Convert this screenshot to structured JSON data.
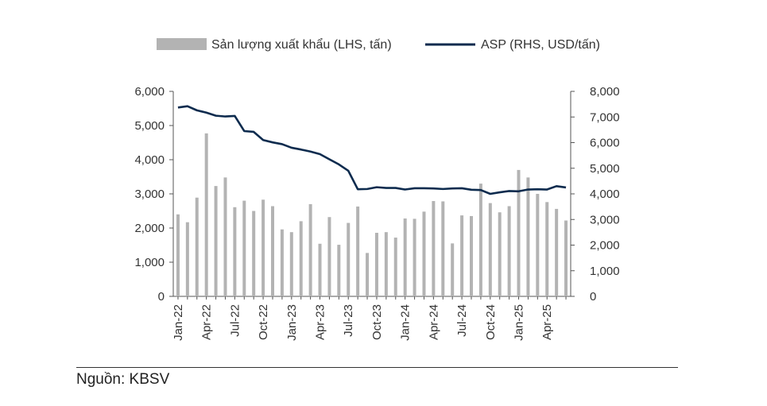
{
  "chart_data": {
    "type": "bar+line",
    "x": [
      "Jan-22",
      "Feb-22",
      "Mar-22",
      "Apr-22",
      "May-22",
      "Jun-22",
      "Jul-22",
      "Aug-22",
      "Sep-22",
      "Oct-22",
      "Nov-22",
      "Dec-22",
      "Jan-23",
      "Feb-23",
      "Mar-23",
      "Apr-23",
      "May-23",
      "Jun-23",
      "Jul-23",
      "Aug-23",
      "Sep-23",
      "Oct-23",
      "Nov-23",
      "Dec-23",
      "Jan-24",
      "Feb-24",
      "Mar-24",
      "Apr-24",
      "May-24",
      "Jun-24",
      "Jul-24",
      "Aug-24",
      "Sep-24",
      "Oct-24",
      "Nov-24",
      "Dec-24",
      "Jan-25",
      "Feb-25",
      "Mar-25",
      "Apr-25",
      "May-25",
      "Jun-25"
    ],
    "x_tick_labels": [
      "Jan-22",
      "Apr-22",
      "Jul-22",
      "Oct-22",
      "Jan-23",
      "Apr-23",
      "Jul-23",
      "Oct-23",
      "Jan-24",
      "Apr-24",
      "Jul-24",
      "Oct-24",
      "Jan-25",
      "Apr-25"
    ],
    "series": [
      {
        "name": "Sản lượng xuất khẩu (LHS, tấn)",
        "type": "bar",
        "axis": "left",
        "color": "#b3b3b3",
        "values": [
          2400,
          2170,
          2890,
          4770,
          3230,
          3480,
          2610,
          2800,
          2500,
          2830,
          2640,
          1960,
          1880,
          2200,
          2700,
          1540,
          2320,
          1510,
          2150,
          2630,
          1270,
          1860,
          1880,
          1720,
          2280,
          2270,
          2480,
          2790,
          2780,
          1550,
          2370,
          2350,
          3300,
          2730,
          2460,
          2640,
          3700,
          3480,
          3000,
          2760,
          2560,
          2220
        ]
      },
      {
        "name": "ASP (RHS, USD/tấn)",
        "type": "line",
        "axis": "right",
        "color": "#0d2b4e",
        "values": [
          7370,
          7420,
          7260,
          7170,
          7050,
          7020,
          7040,
          6450,
          6420,
          6100,
          6010,
          5940,
          5800,
          5730,
          5650,
          5550,
          5350,
          5150,
          4900,
          4180,
          4190,
          4260,
          4230,
          4230,
          4170,
          4220,
          4220,
          4210,
          4190,
          4210,
          4220,
          4160,
          4150,
          4000,
          4060,
          4110,
          4100,
          4170,
          4180,
          4170,
          4300,
          4250
        ]
      }
    ],
    "y_left": {
      "min": 0,
      "max": 6000,
      "ticks": [
        "0",
        "1,000",
        "2,000",
        "3,000",
        "4,000",
        "5,000",
        "6,000"
      ]
    },
    "y_right": {
      "min": 0,
      "max": 8000,
      "ticks": [
        "0",
        "1,000",
        "2,000",
        "3,000",
        "4,000",
        "5,000",
        "6,000",
        "7,000",
        "8,000"
      ]
    },
    "grid": false,
    "legend_position": "top"
  },
  "source": "Nguồn: KBSV"
}
